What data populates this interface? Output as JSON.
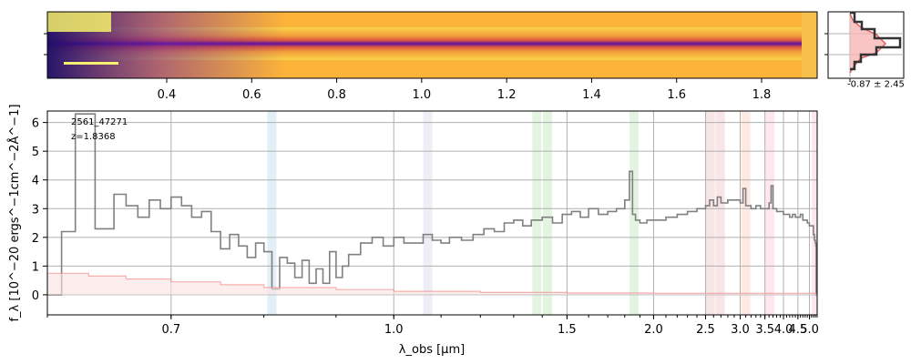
{
  "chart_data": [
    {
      "type": "image",
      "panel": "2D spectrum",
      "x_ticks_um": [
        0.4,
        0.6,
        0.8,
        1.0,
        1.2,
        1.4,
        1.6,
        1.8
      ],
      "x_tick_labels": [
        "0.4",
        "0.6",
        "0.8",
        "1.0",
        "1.2",
        "1.4",
        "1.6",
        "1.8"
      ],
      "colormap": "plasma"
    },
    {
      "type": "line",
      "panel": "spatial profile",
      "annotation": "-0.87 ± 2.45"
    },
    {
      "type": "line",
      "panel": "1D spectrum",
      "object_id": "2561_47271",
      "redshift_label": "z=1.8368",
      "xlabel": "λ_obs [μm]",
      "ylabel": "f_λ [10^−20 ergs^−1cm^−2Å^−1]",
      "x_scale": "reciprocal",
      "xlim": [
        0.6,
        5.4
      ],
      "ylim": [
        -0.7,
        6.4
      ],
      "x_tick_labels": [
        "0.7",
        "1.0",
        "1.5",
        "2.0",
        "2.5",
        "3.0",
        "3.5",
        "4.0",
        "4.5",
        "5.0"
      ],
      "y_ticks": [
        0,
        1,
        2,
        3,
        4,
        5,
        6
      ],
      "grid": true,
      "line_bands_um": [
        {
          "x": 0.81,
          "color": "#9ecae1"
        },
        {
          "x": 1.07,
          "color": "#c6c6e6"
        },
        {
          "x": 1.38,
          "color": "#a1d99b"
        },
        {
          "x": 1.42,
          "color": "#a1d99b"
        },
        {
          "x": 1.86,
          "color": "#a1d99b"
        },
        {
          "x": 2.56,
          "color": "#e7a9a9"
        },
        {
          "x": 2.69,
          "color": "#e7a9a9"
        },
        {
          "x": 3.1,
          "color": "#fcbba1"
        },
        {
          "x": 3.62,
          "color": "#fbb4c4"
        },
        {
          "x": 5.35,
          "color": "#fbb4c4"
        }
      ],
      "series": [
        {
          "kind": "flux",
          "color": "#808080",
          "x": [
            0.6,
            0.61,
            0.62,
            0.635,
            0.65,
            0.66,
            0.67,
            0.68,
            0.69,
            0.7,
            0.71,
            0.72,
            0.73,
            0.74,
            0.75,
            0.76,
            0.77,
            0.78,
            0.79,
            0.8,
            0.81,
            0.82,
            0.83,
            0.84,
            0.85,
            0.86,
            0.87,
            0.88,
            0.89,
            0.9,
            0.91,
            0.92,
            0.94,
            0.96,
            0.98,
            1.0,
            1.02,
            1.04,
            1.06,
            1.08,
            1.1,
            1.12,
            1.15,
            1.18,
            1.21,
            1.24,
            1.27,
            1.3,
            1.33,
            1.36,
            1.4,
            1.44,
            1.48,
            1.52,
            1.56,
            1.6,
            1.65,
            1.7,
            1.75,
            1.8,
            1.83,
            1.85,
            1.87,
            1.9,
            1.95,
            2.0,
            2.1,
            2.2,
            2.3,
            2.4,
            2.5,
            2.55,
            2.6,
            2.65,
            2.7,
            2.8,
            2.9,
            3.0,
            3.05,
            3.1,
            3.2,
            3.3,
            3.4,
            3.5,
            3.6,
            3.65,
            3.7,
            3.8,
            3.9,
            4.0,
            4.1,
            4.2,
            4.3,
            4.4,
            4.5,
            4.6,
            4.7,
            4.8,
            4.9,
            5.0,
            5.1,
            5.2,
            5.25,
            5.3,
            5.33,
            5.35,
            5.4
          ],
          "y": [
            0,
            2.2,
            6.3,
            2.3,
            3.5,
            3.1,
            2.7,
            3.3,
            3.0,
            3.4,
            3.1,
            2.7,
            2.9,
            2.2,
            1.6,
            2.1,
            1.7,
            1.3,
            1.8,
            1.5,
            0.2,
            1.3,
            1.1,
            0.6,
            1.2,
            0.4,
            0.9,
            0.4,
            1.5,
            0.6,
            1.0,
            1.4,
            1.8,
            2.0,
            1.7,
            2.0,
            1.8,
            1.8,
            2.1,
            1.9,
            1.8,
            2.0,
            1.9,
            2.1,
            2.3,
            2.2,
            2.5,
            2.6,
            2.4,
            2.6,
            2.7,
            2.5,
            2.8,
            2.9,
            2.7,
            3.0,
            2.8,
            2.9,
            3.0,
            3.3,
            4.3,
            2.8,
            2.6,
            2.5,
            2.6,
            2.6,
            2.7,
            2.8,
            2.9,
            3.0,
            3.1,
            3.3,
            3.1,
            3.4,
            3.2,
            3.3,
            3.3,
            3.2,
            3.7,
            3.1,
            3.0,
            3.1,
            3.0,
            3.0,
            3.2,
            3.8,
            3.0,
            2.9,
            2.9,
            2.8,
            2.8,
            2.7,
            2.8,
            2.7,
            2.7,
            2.8,
            2.6,
            2.6,
            2.5,
            2.4,
            2.4,
            2.1,
            1.9,
            1.8,
            1.7,
            0.0,
            0.0
          ]
        },
        {
          "kind": "error",
          "color": "#f08080",
          "x": [
            0.6,
            0.63,
            0.66,
            0.7,
            0.75,
            0.8,
            0.9,
            1.0,
            1.2,
            1.5,
            2.0,
            3.0,
            4.0,
            5.0,
            5.4
          ],
          "y": [
            0.75,
            0.65,
            0.55,
            0.45,
            0.35,
            0.25,
            0.18,
            0.12,
            0.08,
            0.06,
            0.05,
            0.05,
            0.05,
            0.05,
            0.05
          ]
        }
      ]
    }
  ]
}
